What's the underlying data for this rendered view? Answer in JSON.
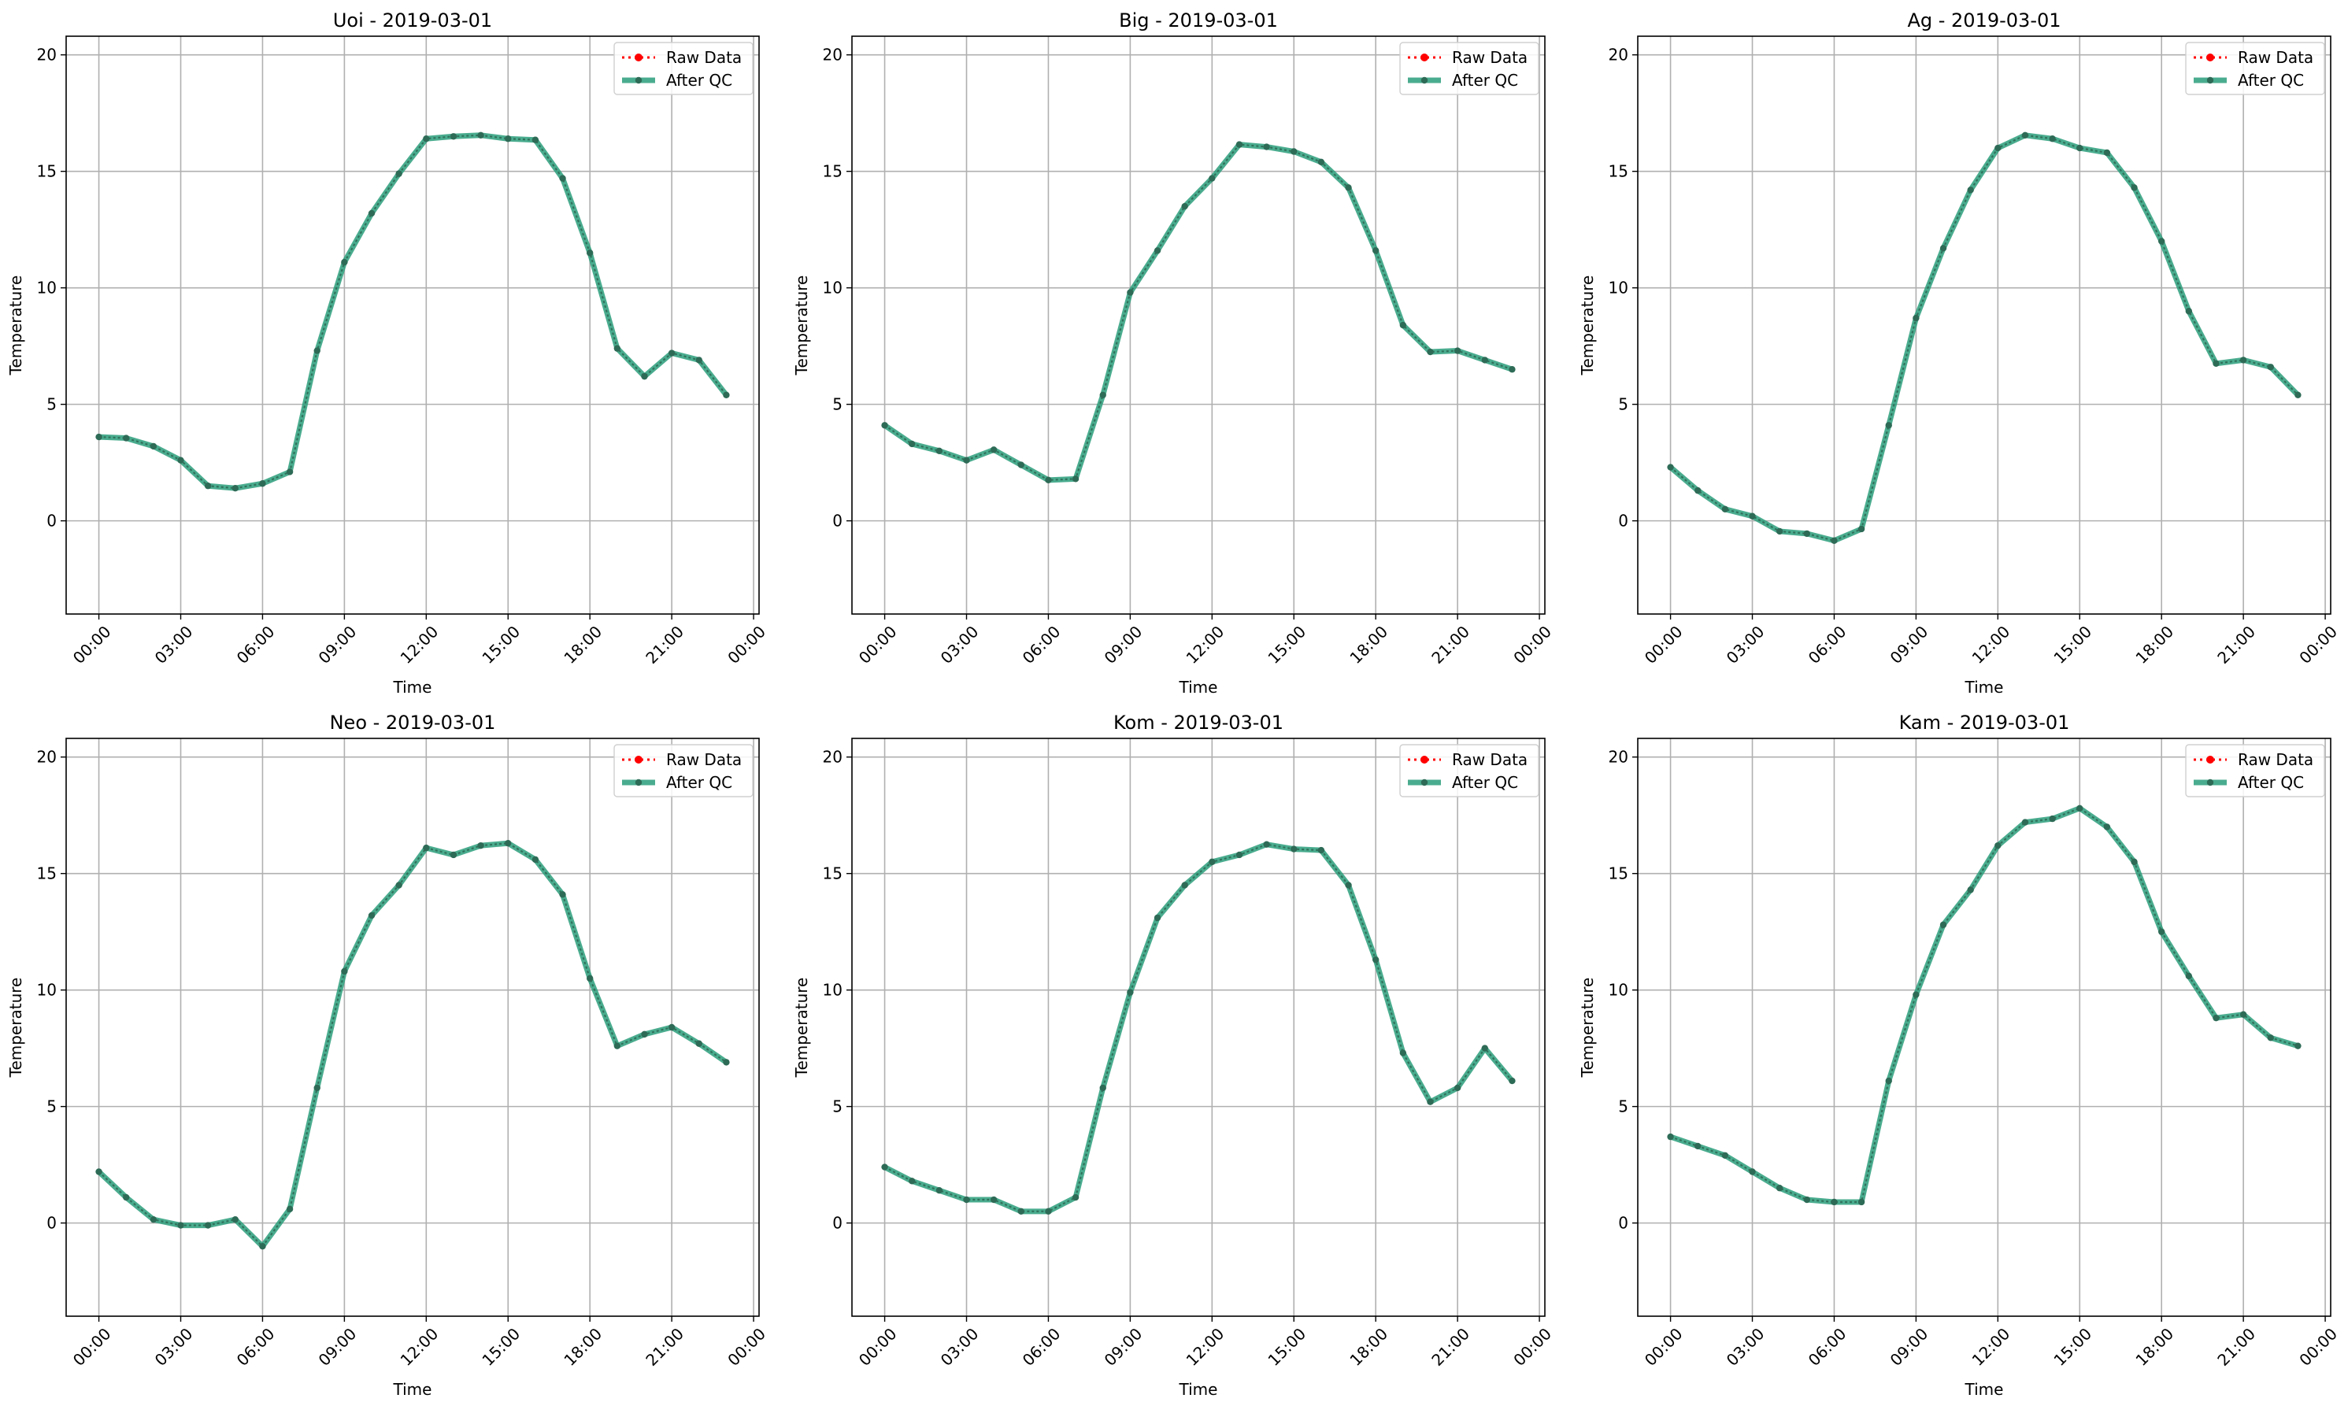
{
  "figure": {
    "background": "#ffffff",
    "grid_color": "#b0b0b0",
    "raw_color": "#ff0000",
    "qc_color": "#2a9d7a",
    "qc_marker_color": "#2e6b57"
  },
  "chart_data": [
    {
      "type": "line",
      "title": "Uoi - 2019-03-01",
      "xlabel": "Time",
      "ylabel": "Temperature",
      "ylim": [
        -4,
        20.8
      ],
      "xlim": [
        -1.2,
        24.2
      ],
      "x_ticks": [
        0,
        3,
        6,
        9,
        12,
        15,
        18,
        21,
        24
      ],
      "x_tick_labels": [
        "00:00",
        "03:00",
        "06:00",
        "09:00",
        "12:00",
        "15:00",
        "18:00",
        "21:00",
        "00:00"
      ],
      "y_ticks": [
        0,
        5,
        10,
        15,
        20
      ],
      "y_tick_labels": [
        "0",
        "5",
        "10",
        "15",
        "20"
      ],
      "grid": true,
      "legend_position": "top-right",
      "x": [
        0,
        1,
        2,
        3,
        4,
        5,
        6,
        7,
        8,
        9,
        10,
        11,
        12,
        13,
        14,
        15,
        16,
        17,
        18,
        19,
        20,
        21,
        22,
        23
      ],
      "series": [
        {
          "name": "Raw Data",
          "values": [
            3.6,
            3.55,
            3.2,
            2.6,
            1.5,
            1.4,
            1.6,
            2.1,
            7.3,
            11.1,
            13.2,
            14.9,
            16.4,
            16.5,
            16.55,
            16.4,
            16.35,
            14.7,
            11.5,
            7.4,
            6.2,
            7.2,
            6.9,
            5.4
          ]
        },
        {
          "name": "After QC",
          "values": [
            3.6,
            3.55,
            3.2,
            2.6,
            1.5,
            1.4,
            1.6,
            2.1,
            7.3,
            11.1,
            13.2,
            14.9,
            16.4,
            16.5,
            16.55,
            16.4,
            16.35,
            14.7,
            11.5,
            7.4,
            6.2,
            7.2,
            6.9,
            5.4
          ]
        }
      ]
    },
    {
      "type": "line",
      "title": "Big - 2019-03-01",
      "xlabel": "Time",
      "ylabel": "Temperature",
      "ylim": [
        -4,
        20.8
      ],
      "xlim": [
        -1.2,
        24.2
      ],
      "x_ticks": [
        0,
        3,
        6,
        9,
        12,
        15,
        18,
        21,
        24
      ],
      "x_tick_labels": [
        "00:00",
        "03:00",
        "06:00",
        "09:00",
        "12:00",
        "15:00",
        "18:00",
        "21:00",
        "00:00"
      ],
      "y_ticks": [
        0,
        5,
        10,
        15,
        20
      ],
      "y_tick_labels": [
        "0",
        "5",
        "10",
        "15",
        "20"
      ],
      "grid": true,
      "legend_position": "top-right",
      "x": [
        0,
        1,
        2,
        3,
        4,
        5,
        6,
        7,
        8,
        9,
        10,
        11,
        12,
        13,
        14,
        15,
        16,
        17,
        18,
        19,
        20,
        21,
        22,
        23
      ],
      "series": [
        {
          "name": "Raw Data",
          "values": [
            4.1,
            3.3,
            3.0,
            2.6,
            3.05,
            2.4,
            1.75,
            1.8,
            5.4,
            9.8,
            11.6,
            13.5,
            14.7,
            16.15,
            16.05,
            15.85,
            15.4,
            14.3,
            11.6,
            8.4,
            7.25,
            7.3,
            6.9,
            6.5
          ]
        },
        {
          "name": "After QC",
          "values": [
            4.1,
            3.3,
            3.0,
            2.6,
            3.05,
            2.4,
            1.75,
            1.8,
            5.4,
            9.8,
            11.6,
            13.5,
            14.7,
            16.15,
            16.05,
            15.85,
            15.4,
            14.3,
            11.6,
            8.4,
            7.25,
            7.3,
            6.9,
            6.5
          ]
        }
      ]
    },
    {
      "type": "line",
      "title": "Ag - 2019-03-01",
      "xlabel": "Time",
      "ylabel": "Temperature",
      "ylim": [
        -4,
        20.8
      ],
      "xlim": [
        -1.2,
        24.2
      ],
      "x_ticks": [
        0,
        3,
        6,
        9,
        12,
        15,
        18,
        21,
        24
      ],
      "x_tick_labels": [
        "00:00",
        "03:00",
        "06:00",
        "09:00",
        "12:00",
        "15:00",
        "18:00",
        "21:00",
        "00:00"
      ],
      "y_ticks": [
        0,
        5,
        10,
        15,
        20
      ],
      "y_tick_labels": [
        "0",
        "5",
        "10",
        "15",
        "20"
      ],
      "grid": true,
      "legend_position": "top-right",
      "x": [
        0,
        1,
        2,
        3,
        4,
        5,
        6,
        7,
        8,
        9,
        10,
        11,
        12,
        13,
        14,
        15,
        16,
        17,
        18,
        19,
        20,
        21,
        22,
        23
      ],
      "series": [
        {
          "name": "Raw Data",
          "values": [
            2.3,
            1.3,
            0.5,
            0.2,
            -0.45,
            -0.55,
            -0.85,
            -0.35,
            4.1,
            8.7,
            11.7,
            14.2,
            16.0,
            16.55,
            16.4,
            16.0,
            15.8,
            14.3,
            12.0,
            9.0,
            6.75,
            6.9,
            6.6,
            5.4
          ]
        },
        {
          "name": "After QC",
          "values": [
            2.3,
            1.3,
            0.5,
            0.2,
            -0.45,
            -0.55,
            -0.85,
            -0.35,
            4.1,
            8.7,
            11.7,
            14.2,
            16.0,
            16.55,
            16.4,
            16.0,
            15.8,
            14.3,
            12.0,
            9.0,
            6.75,
            6.9,
            6.6,
            5.4
          ]
        }
      ]
    },
    {
      "type": "line",
      "title": "Neo - 2019-03-01",
      "xlabel": "Time",
      "ylabel": "Temperature",
      "ylim": [
        -4,
        20.8
      ],
      "xlim": [
        -1.2,
        24.2
      ],
      "x_ticks": [
        0,
        3,
        6,
        9,
        12,
        15,
        18,
        21,
        24
      ],
      "x_tick_labels": [
        "00:00",
        "03:00",
        "06:00",
        "09:00",
        "12:00",
        "15:00",
        "18:00",
        "21:00",
        "00:00"
      ],
      "y_ticks": [
        0,
        5,
        10,
        15,
        20
      ],
      "y_tick_labels": [
        "0",
        "5",
        "10",
        "15",
        "20"
      ],
      "grid": true,
      "legend_position": "top-right",
      "x": [
        0,
        1,
        2,
        3,
        4,
        5,
        6,
        7,
        8,
        9,
        10,
        11,
        12,
        13,
        14,
        15,
        16,
        17,
        18,
        19,
        20,
        21,
        22,
        23
      ],
      "series": [
        {
          "name": "Raw Data",
          "values": [
            2.2,
            1.1,
            0.15,
            -0.1,
            -0.1,
            0.15,
            -1.0,
            0.6,
            5.8,
            10.8,
            13.2,
            14.5,
            16.1,
            15.8,
            16.2,
            16.3,
            15.6,
            14.1,
            10.5,
            7.6,
            8.1,
            8.4,
            7.7,
            6.9
          ]
        },
        {
          "name": "After QC",
          "values": [
            2.2,
            1.1,
            0.15,
            -0.1,
            -0.1,
            0.15,
            -1.0,
            0.6,
            5.8,
            10.8,
            13.2,
            14.5,
            16.1,
            15.8,
            16.2,
            16.3,
            15.6,
            14.1,
            10.5,
            7.6,
            8.1,
            8.4,
            7.7,
            6.9
          ]
        }
      ]
    },
    {
      "type": "line",
      "title": "Kom - 2019-03-01",
      "xlabel": "Time",
      "ylabel": "Temperature",
      "ylim": [
        -4,
        20.8
      ],
      "xlim": [
        -1.2,
        24.2
      ],
      "x_ticks": [
        0,
        3,
        6,
        9,
        12,
        15,
        18,
        21,
        24
      ],
      "x_tick_labels": [
        "00:00",
        "03:00",
        "06:00",
        "09:00",
        "12:00",
        "15:00",
        "18:00",
        "21:00",
        "00:00"
      ],
      "y_ticks": [
        0,
        5,
        10,
        15,
        20
      ],
      "y_tick_labels": [
        "0",
        "5",
        "10",
        "15",
        "20"
      ],
      "grid": true,
      "legend_position": "top-right",
      "x": [
        0,
        1,
        2,
        3,
        4,
        5,
        6,
        7,
        8,
        9,
        10,
        11,
        12,
        13,
        14,
        15,
        16,
        17,
        18,
        19,
        20,
        21,
        22,
        23
      ],
      "series": [
        {
          "name": "Raw Data",
          "values": [
            2.4,
            1.8,
            1.4,
            1.0,
            1.0,
            0.5,
            0.5,
            1.1,
            5.8,
            9.9,
            13.1,
            14.5,
            15.5,
            15.8,
            16.25,
            16.05,
            16.0,
            14.5,
            11.3,
            7.3,
            5.2,
            5.8,
            7.5,
            6.1
          ]
        },
        {
          "name": "After QC",
          "values": [
            2.4,
            1.8,
            1.4,
            1.0,
            1.0,
            0.5,
            0.5,
            1.1,
            5.8,
            9.9,
            13.1,
            14.5,
            15.5,
            15.8,
            16.25,
            16.05,
            16.0,
            14.5,
            11.3,
            7.3,
            5.2,
            5.8,
            7.5,
            6.1
          ]
        }
      ]
    },
    {
      "type": "line",
      "title": "Kam - 2019-03-01",
      "xlabel": "Time",
      "ylabel": "Temperature",
      "ylim": [
        -4,
        20.8
      ],
      "xlim": [
        -1.2,
        24.2
      ],
      "x_ticks": [
        0,
        3,
        6,
        9,
        12,
        15,
        18,
        21,
        24
      ],
      "x_tick_labels": [
        "00:00",
        "03:00",
        "06:00",
        "09:00",
        "12:00",
        "15:00",
        "18:00",
        "21:00",
        "00:00"
      ],
      "y_ticks": [
        0,
        5,
        10,
        15,
        20
      ],
      "y_tick_labels": [
        "0",
        "5",
        "10",
        "15",
        "20"
      ],
      "grid": true,
      "legend_position": "top-right",
      "x": [
        0,
        1,
        2,
        3,
        4,
        5,
        6,
        7,
        8,
        9,
        10,
        11,
        12,
        13,
        14,
        15,
        16,
        17,
        18,
        19,
        20,
        21,
        22,
        23
      ],
      "series": [
        {
          "name": "Raw Data",
          "values": [
            3.7,
            3.3,
            2.9,
            2.2,
            1.5,
            1.0,
            0.9,
            0.9,
            6.1,
            9.8,
            12.8,
            14.3,
            16.2,
            17.2,
            17.35,
            17.8,
            17.0,
            15.5,
            12.5,
            10.6,
            8.8,
            8.95,
            7.95,
            7.6
          ]
        },
        {
          "name": "After QC",
          "values": [
            3.7,
            3.3,
            2.9,
            2.2,
            1.5,
            1.0,
            0.9,
            0.9,
            6.1,
            9.8,
            12.8,
            14.3,
            16.2,
            17.2,
            17.35,
            17.8,
            17.0,
            15.5,
            12.5,
            10.6,
            8.8,
            8.95,
            7.95,
            7.6
          ]
        }
      ]
    }
  ]
}
